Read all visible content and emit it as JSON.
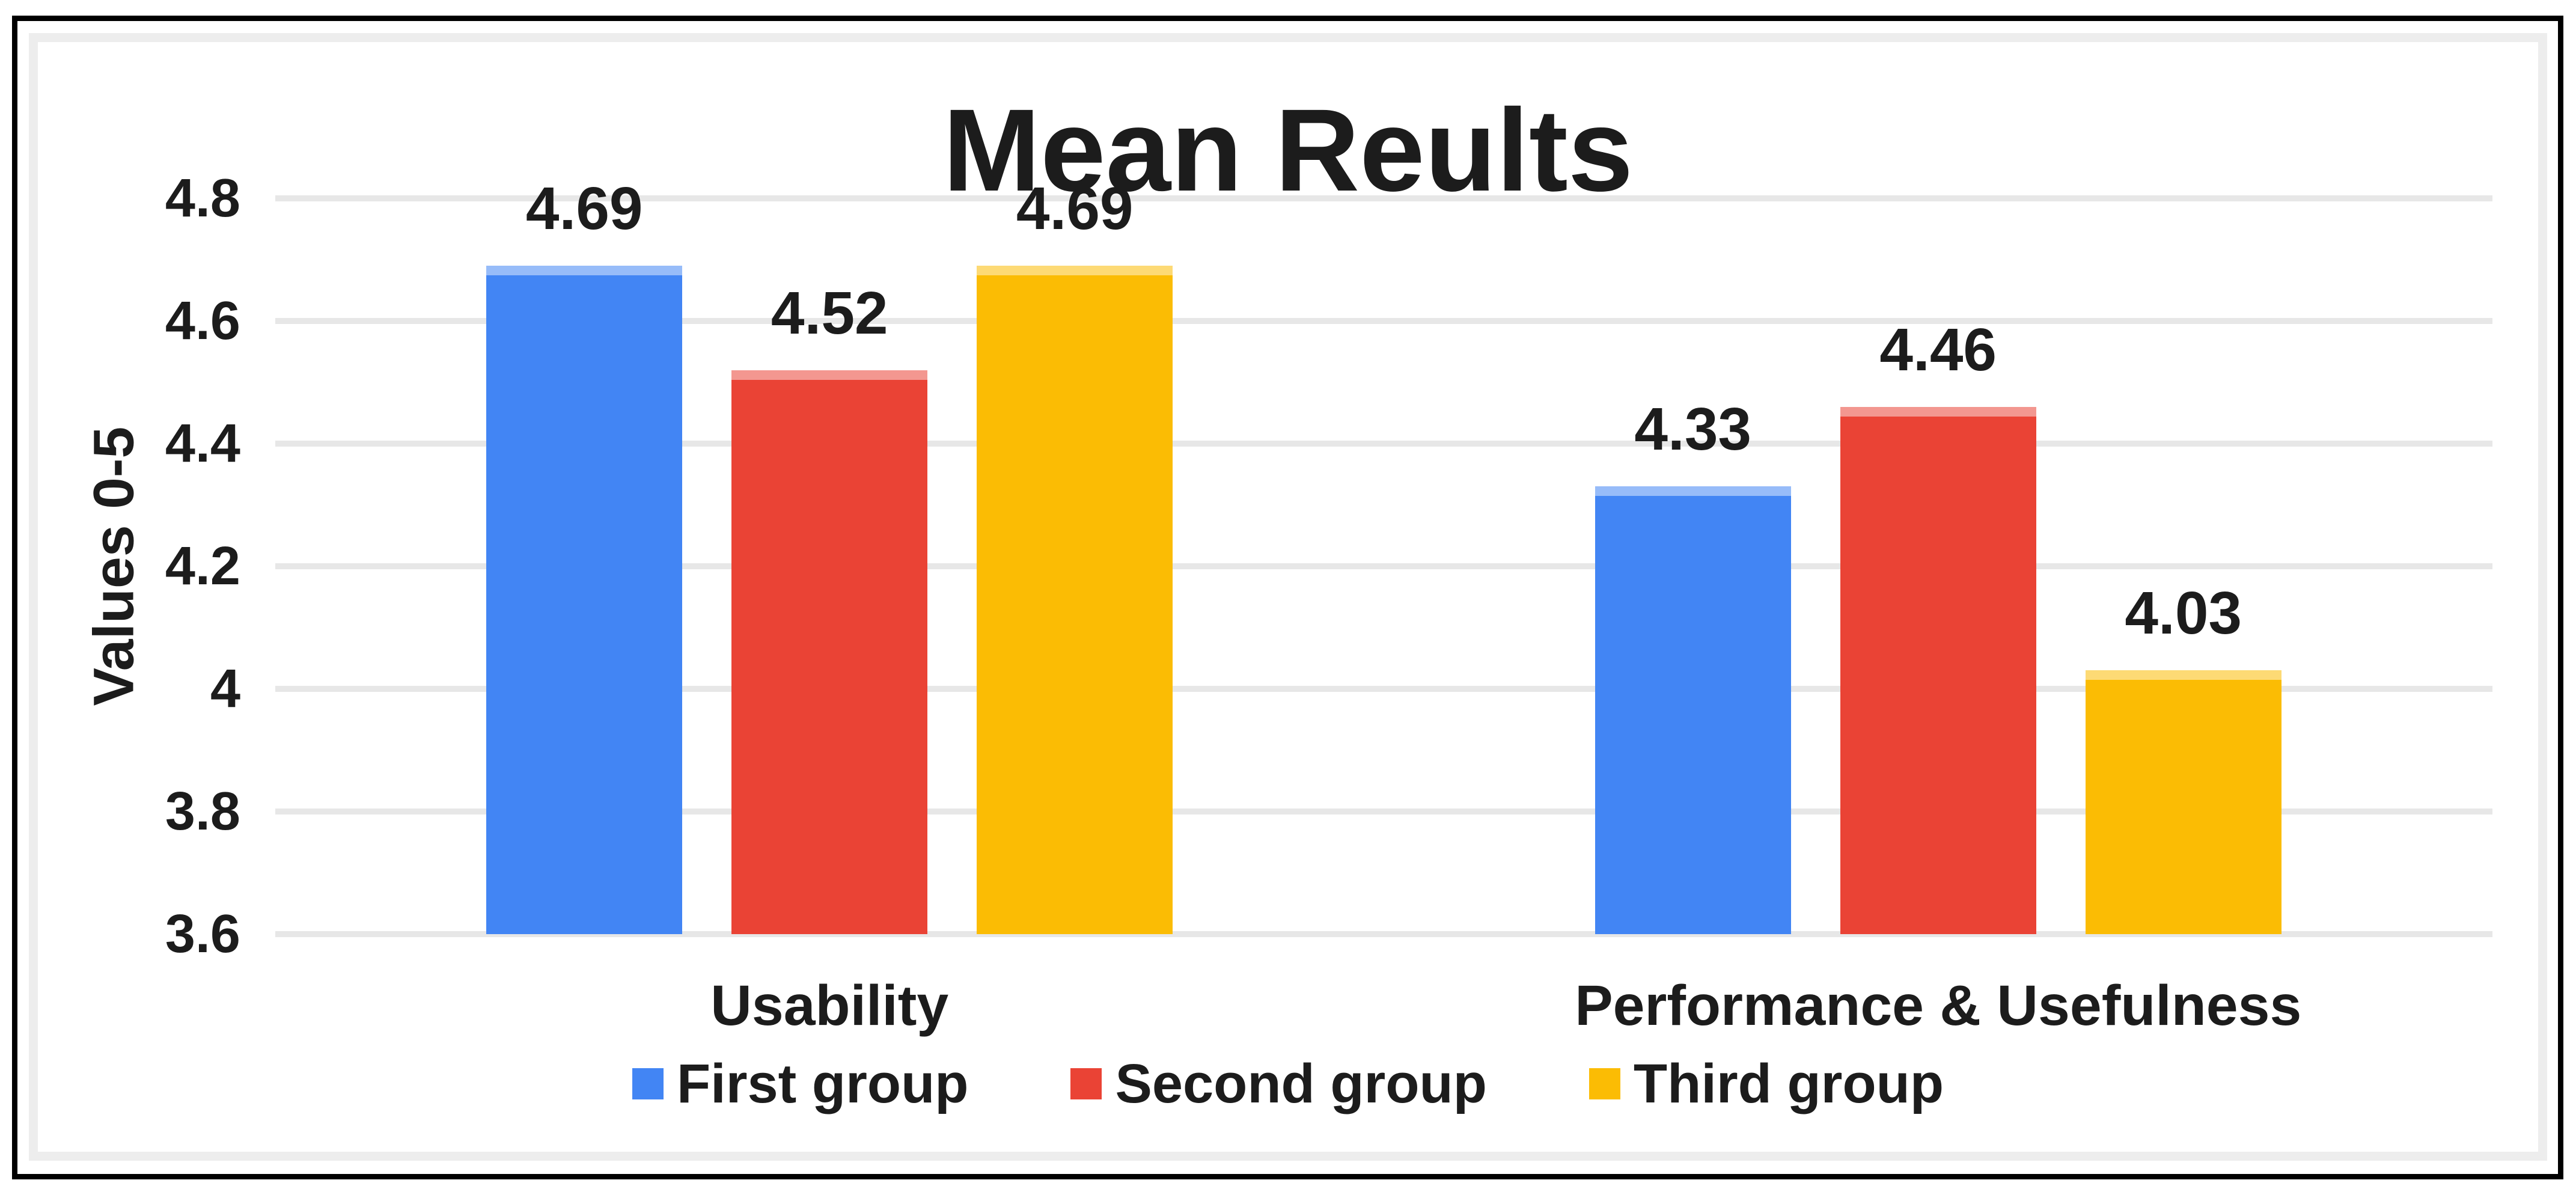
{
  "chart_data": {
    "type": "bar",
    "title": "Mean Reults",
    "xlabel": "",
    "ylabel": "Values 0-5",
    "categories": [
      "Usability",
      "Performance & Usefulness"
    ],
    "series": [
      {
        "name": "First group",
        "color": "#4285F4",
        "values": [
          4.69,
          4.33
        ],
        "value_labels": [
          "4.69",
          "4.33"
        ]
      },
      {
        "name": "Second group",
        "color": "#EA4335",
        "values": [
          4.52,
          4.46
        ],
        "value_labels": [
          "4.52",
          "4.46"
        ]
      },
      {
        "name": "Third group",
        "color": "#FBBC04",
        "values": [
          4.69,
          4.03
        ],
        "value_labels": [
          "4.69",
          "4.03"
        ]
      }
    ],
    "ylim": [
      3.6,
      4.8
    ],
    "ytick_step": 0.2,
    "yticks": [
      "4.8",
      "4.6",
      "4.4",
      "4.2",
      "4",
      "3.8",
      "3.6"
    ],
    "grid": true,
    "legend_position": "bottom",
    "colors": {
      "grid_line": "#e7e7e7",
      "frame_border": "#ededed",
      "outer_border": "#000000",
      "text": "#1c1c1c"
    }
  }
}
